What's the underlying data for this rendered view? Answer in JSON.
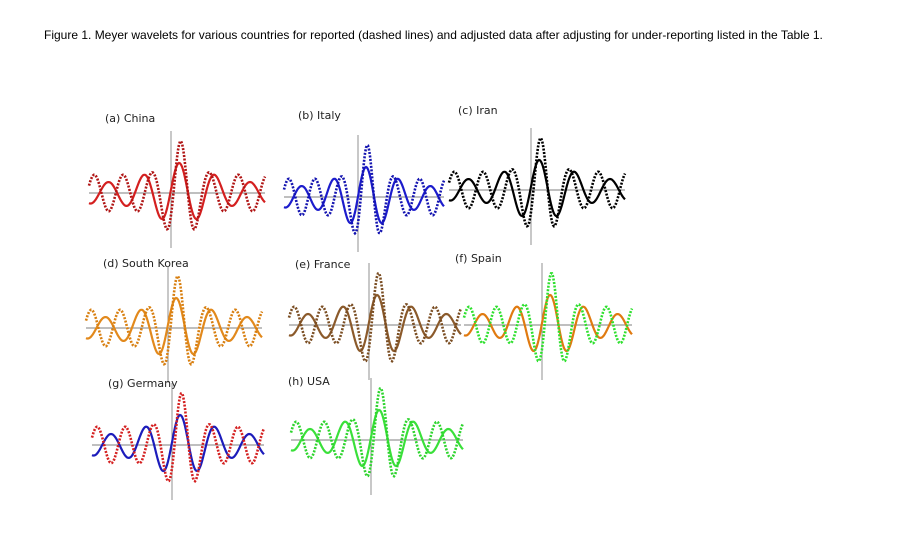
{
  "caption": "Figure 1. Meyer wavelets for various countries for reported (dashed lines) and adjusted data after adjusting for under-reporting listed in the Table 1.",
  "panels": [
    {
      "label": "(a) China"
    },
    {
      "label": "(b) Italy"
    },
    {
      "label": "(c) Iran"
    },
    {
      "label": "(d) South Korea"
    },
    {
      "label": "(e) France"
    },
    {
      "label": "(f) Spain"
    },
    {
      "label": "(g) Germany"
    },
    {
      "label": "(h) USA"
    }
  ]
}
